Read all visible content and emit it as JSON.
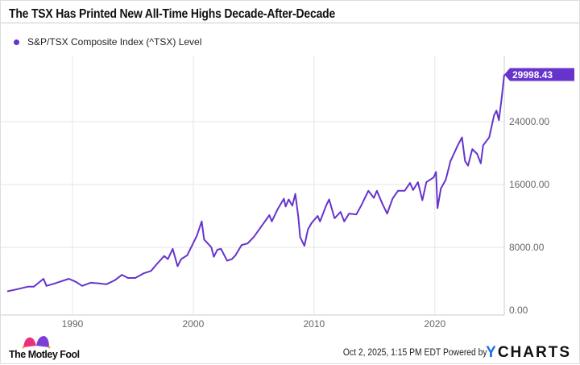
{
  "chart_data": {
    "type": "line",
    "title": "The TSX Has Printed New All-Time Highs Decade-After-Decade",
    "legend": [
      "S&P/TSX Composite Index (^TSX) Level"
    ],
    "legend_position": "top-left",
    "xlim": [
      1984.6,
      2025.75
    ],
    "ylim": [
      0,
      32000
    ],
    "x_ticks": [
      "1990",
      "2000",
      "2010",
      "2020"
    ],
    "y_ticks": [
      "0.00",
      "8000.00",
      "16000.00",
      "24000.00"
    ],
    "y_axis_side": "right",
    "grid": true,
    "color": "#6633cc",
    "last_value_label": "29998.43",
    "series": [
      {
        "name": "S&P/TSX Composite Index (^TSX) Level",
        "points": [
          [
            1984.6,
            2400
          ],
          [
            1985.5,
            2700
          ],
          [
            1986.3,
            3000
          ],
          [
            1986.8,
            3000
          ],
          [
            1987.6,
            4000
          ],
          [
            1987.85,
            3100
          ],
          [
            1988.5,
            3400
          ],
          [
            1989.7,
            4000
          ],
          [
            1990.3,
            3600
          ],
          [
            1990.8,
            3100
          ],
          [
            1991.5,
            3500
          ],
          [
            1992.3,
            3400
          ],
          [
            1992.8,
            3300
          ],
          [
            1993.5,
            3800
          ],
          [
            1994.1,
            4500
          ],
          [
            1994.6,
            4100
          ],
          [
            1995.2,
            4100
          ],
          [
            1995.9,
            4700
          ],
          [
            1996.5,
            5000
          ],
          [
            1997.0,
            5900
          ],
          [
            1997.6,
            6900
          ],
          [
            1997.9,
            6500
          ],
          [
            1998.3,
            7800
          ],
          [
            1998.7,
            5600
          ],
          [
            1999.0,
            6500
          ],
          [
            1999.5,
            7000
          ],
          [
            1999.95,
            8400
          ],
          [
            2000.3,
            9500
          ],
          [
            2000.7,
            11300
          ],
          [
            2000.9,
            9000
          ],
          [
            2001.2,
            8500
          ],
          [
            2001.5,
            8000
          ],
          [
            2001.7,
            6800
          ],
          [
            2002.0,
            7700
          ],
          [
            2002.3,
            7800
          ],
          [
            2002.8,
            6300
          ],
          [
            2003.2,
            6500
          ],
          [
            2003.5,
            7000
          ],
          [
            2004.0,
            8300
          ],
          [
            2004.5,
            8500
          ],
          [
            2005.0,
            9300
          ],
          [
            2005.7,
            10800
          ],
          [
            2006.3,
            12100
          ],
          [
            2006.5,
            11300
          ],
          [
            2007.0,
            12900
          ],
          [
            2007.5,
            14200
          ],
          [
            2007.65,
            13200
          ],
          [
            2007.9,
            14100
          ],
          [
            2008.2,
            13300
          ],
          [
            2008.45,
            14800
          ],
          [
            2008.7,
            11800
          ],
          [
            2008.85,
            9300
          ],
          [
            2009.2,
            8200
          ],
          [
            2009.5,
            10300
          ],
          [
            2009.8,
            11100
          ],
          [
            2010.3,
            12000
          ],
          [
            2010.5,
            11300
          ],
          [
            2011.0,
            13300
          ],
          [
            2011.25,
            14100
          ],
          [
            2011.7,
            11700
          ],
          [
            2012.2,
            12500
          ],
          [
            2012.5,
            11300
          ],
          [
            2012.9,
            12300
          ],
          [
            2013.5,
            12200
          ],
          [
            2013.9,
            13300
          ],
          [
            2014.5,
            15200
          ],
          [
            2014.95,
            14300
          ],
          [
            2015.2,
            15200
          ],
          [
            2015.7,
            13400
          ],
          [
            2016.05,
            12300
          ],
          [
            2016.5,
            14200
          ],
          [
            2016.95,
            15200
          ],
          [
            2017.5,
            15200
          ],
          [
            2017.95,
            16200
          ],
          [
            2018.2,
            15300
          ],
          [
            2018.6,
            16300
          ],
          [
            2018.97,
            14000
          ],
          [
            2019.3,
            16300
          ],
          [
            2019.9,
            16900
          ],
          [
            2020.1,
            17600
          ],
          [
            2020.22,
            13000
          ],
          [
            2020.5,
            15500
          ],
          [
            2020.9,
            16600
          ],
          [
            2021.3,
            19000
          ],
          [
            2021.9,
            21000
          ],
          [
            2022.25,
            22000
          ],
          [
            2022.5,
            19000
          ],
          [
            2022.75,
            18400
          ],
          [
            2023.1,
            20500
          ],
          [
            2023.5,
            19900
          ],
          [
            2023.8,
            18700
          ],
          [
            2024.0,
            21000
          ],
          [
            2024.5,
            22000
          ],
          [
            2024.9,
            24800
          ],
          [
            2025.1,
            25400
          ],
          [
            2025.3,
            24200
          ],
          [
            2025.5,
            26600
          ],
          [
            2025.75,
            29998.43
          ]
        ]
      }
    ]
  },
  "footer": {
    "timestamp": "Oct 2, 2025, 1:15 PM EDT",
    "powered_by": "Powered by",
    "ycharts_y": "Y",
    "ycharts_rest": "CHARTS",
    "fool_logo": "The Motley Fool"
  }
}
